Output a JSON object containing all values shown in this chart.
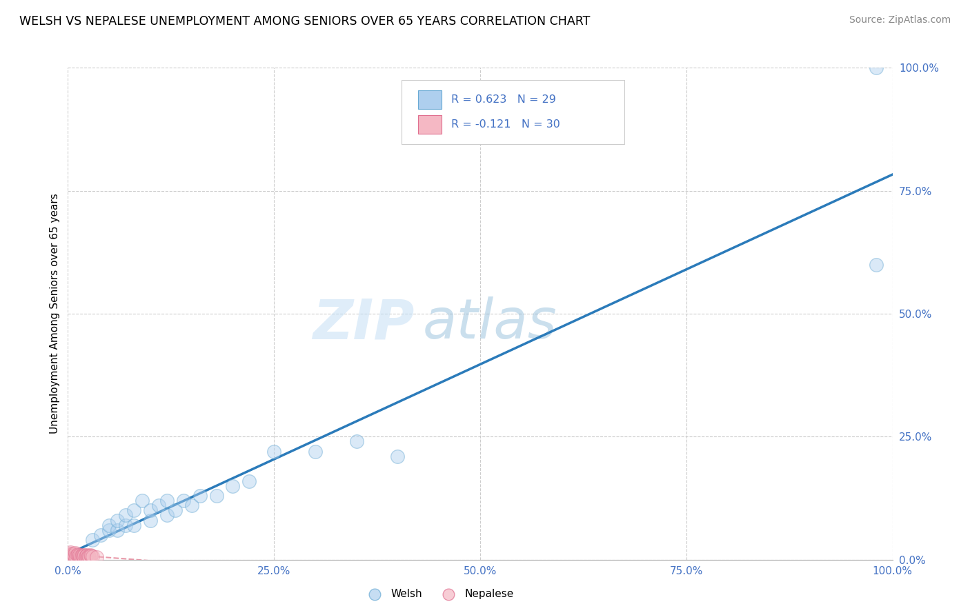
{
  "title": "WELSH VS NEPALESE UNEMPLOYMENT AMONG SENIORS OVER 65 YEARS CORRELATION CHART",
  "source": "Source: ZipAtlas.com",
  "ylabel": "Unemployment Among Seniors over 65 years",
  "xlim": [
    0,
    1.0
  ],
  "ylim": [
    0,
    1.0
  ],
  "xtick_labels": [
    "0.0%",
    "25.0%",
    "50.0%",
    "75.0%",
    "100.0%"
  ],
  "xtick_vals": [
    0,
    0.25,
    0.5,
    0.75,
    1.0
  ],
  "ytick_labels": [
    "0.0%",
    "25.0%",
    "50.0%",
    "75.0%",
    "100.0%"
  ],
  "ytick_vals": [
    0,
    0.25,
    0.5,
    0.75,
    1.0
  ],
  "welsh_color": "#aecfee",
  "welsh_edge_color": "#6aaad4",
  "nepalese_color": "#f5b8c4",
  "nepalese_edge_color": "#e07090",
  "trend_welsh_color": "#2b7bba",
  "trend_nepalese_color": "#e898a8",
  "welsh_R": 0.623,
  "welsh_N": 29,
  "nepalese_R": -0.121,
  "nepalese_N": 30,
  "welsh_scatter_x": [
    0.03,
    0.04,
    0.05,
    0.05,
    0.06,
    0.06,
    0.07,
    0.07,
    0.08,
    0.08,
    0.09,
    0.1,
    0.1,
    0.11,
    0.12,
    0.12,
    0.13,
    0.14,
    0.15,
    0.16,
    0.18,
    0.2,
    0.22,
    0.25,
    0.3,
    0.35,
    0.4,
    0.98,
    0.98
  ],
  "welsh_scatter_y": [
    0.04,
    0.05,
    0.06,
    0.07,
    0.06,
    0.08,
    0.07,
    0.09,
    0.07,
    0.1,
    0.12,
    0.08,
    0.1,
    0.11,
    0.09,
    0.12,
    0.1,
    0.12,
    0.11,
    0.13,
    0.13,
    0.15,
    0.16,
    0.22,
    0.22,
    0.24,
    0.21,
    0.6,
    1.0
  ],
  "nepalese_scatter_x": [
    0.001,
    0.002,
    0.003,
    0.004,
    0.005,
    0.006,
    0.007,
    0.008,
    0.009,
    0.01,
    0.011,
    0.012,
    0.013,
    0.014,
    0.015,
    0.016,
    0.017,
    0.018,
    0.019,
    0.02,
    0.021,
    0.022,
    0.023,
    0.024,
    0.025,
    0.026,
    0.027,
    0.028,
    0.03,
    0.035
  ],
  "nepalese_scatter_y": [
    0.005,
    0.01,
    0.015,
    0.012,
    0.008,
    0.012,
    0.009,
    0.006,
    0.014,
    0.007,
    0.009,
    0.011,
    0.008,
    0.01,
    0.007,
    0.006,
    0.01,
    0.008,
    0.007,
    0.009,
    0.006,
    0.008,
    0.01,
    0.005,
    0.008,
    0.007,
    0.009,
    0.008,
    0.006,
    0.005
  ],
  "watermark_zip": "ZIP",
  "watermark_atlas": "atlas",
  "background_color": "#ffffff",
  "grid_color": "#cccccc",
  "tick_color": "#4472c4",
  "legend_text_color": "#4472c4",
  "marker_size": 200,
  "marker_alpha": 0.45
}
